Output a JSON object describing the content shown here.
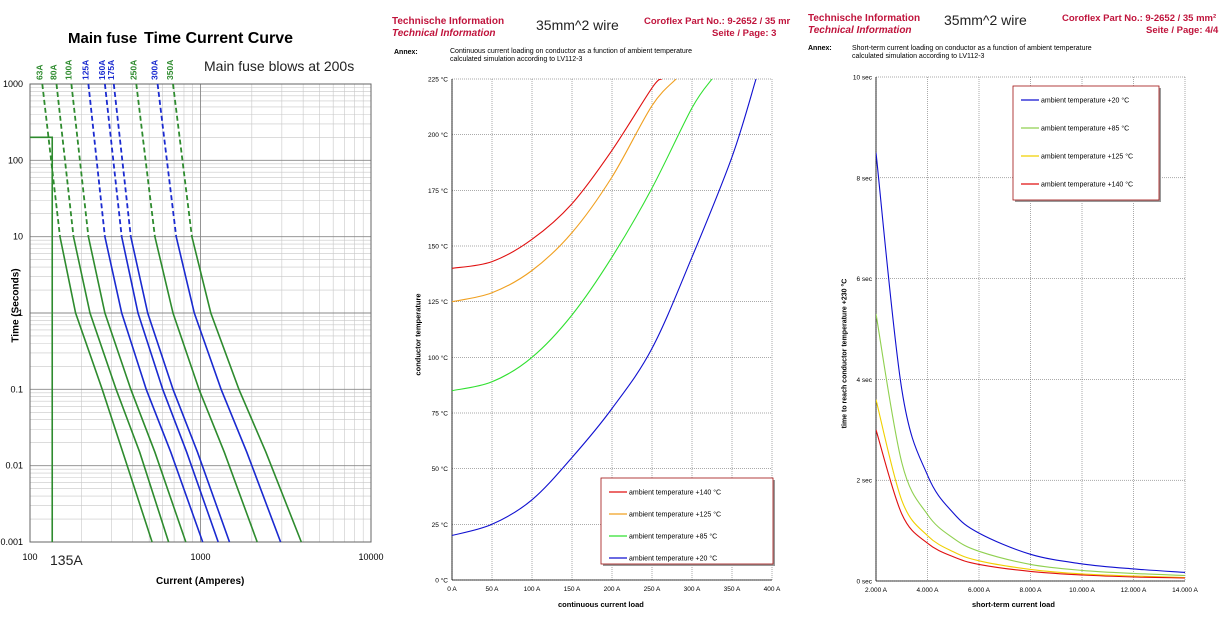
{
  "colors": {
    "fuse_green": "#2e8b2e",
    "fuse_blue": "#1a2ad0",
    "t140": "#e01010",
    "t125": "#f0a020",
    "t85": "#30e030",
    "t20": "#1010d0",
    "t85_short": "#90d050",
    "t125_short": "#f0d000",
    "header_red": "#c0143c"
  },
  "panel1": {
    "title_prefix": "Main fuse",
    "title_main": "Time Current Curve",
    "note": "Main fuse blows at 200s",
    "bottom_note": "135A",
    "chart_data": {
      "type": "line",
      "title": "Time Current Curve",
      "xlabel": "Current  (Amperes)",
      "ylabel": "Time (Seconds)",
      "xscale": "log",
      "yscale": "log",
      "xlim": [
        100,
        10000
      ],
      "ylim": [
        0.001,
        1000
      ],
      "x_ticks": [
        "100",
        "1000",
        "10000"
      ],
      "y_ticks": [
        "1000",
        "100",
        "10",
        "1",
        "0.1",
        "0.01",
        "0.001"
      ],
      "series": [
        {
          "name": "63A",
          "color": "#2e8b2e",
          "points": [
            [
              118,
              1000
            ],
            [
              150,
              10
            ],
            [
              185,
              1
            ],
            [
              265,
              0.1
            ],
            [
              350,
              0.015
            ],
            [
              520,
              0.001
            ]
          ]
        },
        {
          "name": "80A",
          "color": "#2e8b2e",
          "points": [
            [
              143,
              1000
            ],
            [
              180,
              10
            ],
            [
              225,
              1
            ],
            [
              320,
              0.1
            ],
            [
              440,
              0.015
            ],
            [
              650,
              0.001
            ]
          ]
        },
        {
          "name": "100A",
          "color": "#2e8b2e",
          "points": [
            [
              175,
              1000
            ],
            [
              220,
              10
            ],
            [
              275,
              1
            ],
            [
              390,
              0.1
            ],
            [
              540,
              0.015
            ],
            [
              820,
              0.001
            ]
          ]
        },
        {
          "name": "125A",
          "color": "#1a2ad0",
          "points": [
            [
              220,
              1000
            ],
            [
              275,
              10
            ],
            [
              345,
              1
            ],
            [
              480,
              0.1
            ],
            [
              670,
              0.015
            ],
            [
              1030,
              0.001
            ]
          ]
        },
        {
          "name": "160A",
          "color": "#1a2ad0",
          "points": [
            [
              275,
              1000
            ],
            [
              345,
              10
            ],
            [
              430,
              1
            ],
            [
              600,
              0.1
            ],
            [
              830,
              0.015
            ],
            [
              1270,
              0.001
            ]
          ]
        },
        {
          "name": "175A",
          "color": "#1a2ad0",
          "points": [
            [
              310,
              1000
            ],
            [
              390,
              10
            ],
            [
              490,
              1
            ],
            [
              690,
              0.1
            ],
            [
              960,
              0.015
            ],
            [
              1480,
              0.001
            ]
          ]
        },
        {
          "name": "250A",
          "color": "#2e8b2e",
          "points": [
            [
              420,
              1000
            ],
            [
              540,
              10
            ],
            [
              690,
              1
            ],
            [
              980,
              0.1
            ],
            [
              1380,
              0.015
            ],
            [
              2150,
              0.001
            ]
          ]
        },
        {
          "name": "300A",
          "color": "#1a2ad0",
          "points": [
            [
              560,
              1000
            ],
            [
              720,
              10
            ],
            [
              920,
              1
            ],
            [
              1320,
              0.1
            ],
            [
              1870,
              0.015
            ],
            [
              2950,
              0.001
            ]
          ]
        },
        {
          "name": "350A",
          "color": "#2e8b2e",
          "points": [
            [
              690,
              1000
            ],
            [
              890,
              10
            ],
            [
              1150,
              1
            ],
            [
              1680,
              0.1
            ],
            [
              2420,
              0.015
            ],
            [
              3900,
              0.001
            ]
          ]
        },
        {
          "name": "",
          "color": "#2e8b2e",
          "points": [
            [
              135,
              200
            ],
            [
              135,
              0.001
            ]
          ]
        }
      ]
    }
  },
  "panel2": {
    "header_de": "Technische Information",
    "header_en": "Technical Information",
    "wire": "35mm^2 wire",
    "part": "Coroflex Part No.: 9-2652 / 35 mr",
    "page": "Seite / Page: 3",
    "annex_label": "Annex:",
    "annex_line1": "Continuous current loading on conductor as a function of ambient temperature",
    "annex_line2": "calculated simulation according to LV112-3",
    "chart_data": {
      "type": "line",
      "xlabel": "continuous current load",
      "ylabel": "conductor temperature",
      "xlim": [
        0,
        400
      ],
      "ylim": [
        0,
        225
      ],
      "x_ticks": [
        "0 A",
        "50 A",
        "100 A",
        "150 A",
        "200 A",
        "250 A",
        "300 A",
        "350 A",
        "400 A"
      ],
      "y_ticks": [
        "0 °C",
        "25 °C",
        "50 °C",
        "75 °C",
        "100 °C",
        "125 °C",
        "150 °C",
        "175 °C",
        "200 °C",
        "225 °C"
      ],
      "legend_position": "bottom-right",
      "series": [
        {
          "name": "ambient temperature +140 °C",
          "color": "#e01010",
          "x": [
            0,
            50,
            100,
            150,
            200,
            250,
            262
          ],
          "y": [
            140,
            143,
            153,
            169,
            193,
            221,
            225
          ]
        },
        {
          "name": "ambient temperature +125 °C",
          "color": "#f0a020",
          "x": [
            0,
            50,
            100,
            150,
            200,
            250,
            280
          ],
          "y": [
            125,
            129,
            139,
            156,
            181,
            213,
            225
          ]
        },
        {
          "name": "ambient temperature +85 °C",
          "color": "#30e030",
          "x": [
            0,
            50,
            100,
            150,
            200,
            250,
            300,
            325
          ],
          "y": [
            85,
            89,
            100,
            119,
            145,
            176,
            212,
            225
          ]
        },
        {
          "name": "ambient temperature +20 °C",
          "color": "#1010d0",
          "x": [
            0,
            50,
            100,
            150,
            200,
            250,
            300,
            350,
            380
          ],
          "y": [
            20,
            25,
            36,
            55,
            77,
            104,
            145,
            190,
            225
          ]
        }
      ]
    }
  },
  "panel3": {
    "header_de": "Technische Information",
    "header_en": "Technical Information",
    "wire": "35mm^2 wire",
    "part": "Coroflex Part No.: 9-2652 / 35 mm²",
    "page": "Seite / Page: 4/4",
    "annex_label": "Annex:",
    "annex_line1": "Short-term current loading on conductor as a function of ambient temperature",
    "annex_line2": "calculated simulation according to LV112-3",
    "chart_data": {
      "type": "line",
      "xlabel": "short-term current load",
      "ylabel": "time to reach conductor temperature +230 °C",
      "xlim": [
        2000,
        14000
      ],
      "ylim": [
        0,
        10
      ],
      "x_ticks": [
        "2.000 A",
        "4.000 A",
        "6.000 A",
        "8.000 A",
        "10.000 A",
        "12.000 A",
        "14.000 A"
      ],
      "y_ticks": [
        "0 sec",
        "2 sec",
        "4 sec",
        "6 sec",
        "8 sec",
        "10 sec"
      ],
      "legend_position": "top-right",
      "series": [
        {
          "name": "ambient temperature +20 °C",
          "color": "#1010d0",
          "x": [
            2000,
            3000,
            4000,
            5000,
            6000,
            8000,
            10000,
            12000,
            14000
          ],
          "y": [
            8.5,
            3.8,
            2.1,
            1.35,
            0.95,
            0.53,
            0.34,
            0.24,
            0.17
          ]
        },
        {
          "name": "ambient temperature +85 °C",
          "color": "#90d050",
          "x": [
            2000,
            3000,
            4000,
            5000,
            6000,
            8000,
            10000,
            12000,
            14000
          ],
          "y": [
            5.3,
            2.35,
            1.32,
            0.85,
            0.59,
            0.33,
            0.21,
            0.15,
            0.11
          ]
        },
        {
          "name": "ambient temperature +125 °C",
          "color": "#f0d000",
          "x": [
            2000,
            3000,
            4000,
            5000,
            6000,
            8000,
            10000,
            12000,
            14000
          ],
          "y": [
            3.6,
            1.6,
            0.9,
            0.58,
            0.4,
            0.23,
            0.14,
            0.1,
            0.07
          ]
        },
        {
          "name": "ambient temperature +140 °C",
          "color": "#e01010",
          "x": [
            2000,
            3000,
            4000,
            5000,
            6000,
            8000,
            10000,
            12000,
            14000
          ],
          "y": [
            3.0,
            1.33,
            0.75,
            0.48,
            0.33,
            0.19,
            0.12,
            0.08,
            0.06
          ]
        }
      ]
    }
  }
}
